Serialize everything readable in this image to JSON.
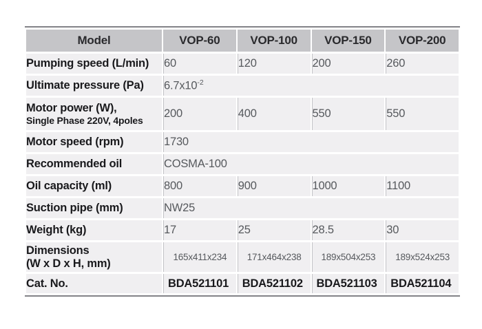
{
  "colors": {
    "page_bg": "#ffffff",
    "header_bg": "#c5c5c8",
    "header_text": "#2a2a2d",
    "row_bg": "#f0eff1",
    "label_text": "#19191c",
    "value_text": "#56595d",
    "divider": "#c2c2c6",
    "border_dark": "#828287"
  },
  "table": {
    "header": {
      "model_label": "Model",
      "columns": [
        "VOP-60",
        "VOP-100",
        "VOP-150",
        "VOP-200"
      ]
    },
    "rows": [
      {
        "label": "Pumping speed (L/min)",
        "values": [
          "60",
          "120",
          "200",
          "260"
        ]
      },
      {
        "label": "Ultimate pressure (Pa)",
        "value_base": "6.7x10",
        "value_sup": "-2"
      },
      {
        "label": "Motor power (W),",
        "sublabel": "Single Phase 220V, 4poles",
        "values": [
          "200",
          "400",
          "550",
          "550"
        ]
      },
      {
        "label": "Motor speed (rpm)",
        "value": "1730"
      },
      {
        "label": "Recommended oil",
        "value": "COSMA-100"
      },
      {
        "label": "Oil capacity (ml)",
        "values": [
          "800",
          "900",
          "1000",
          "1100"
        ]
      },
      {
        "label": "Suction pipe (mm)",
        "value": "NW25"
      },
      {
        "label": "Weight (kg)",
        "values": [
          "17",
          "25",
          "28.5",
          "30"
        ]
      },
      {
        "label": "Dimensions",
        "sublabel": "(W x D x H, mm)",
        "values": [
          "165x411x234",
          "171x464x238",
          "189x504x253",
          "189x524x253"
        ]
      },
      {
        "label": "Cat. No.",
        "values": [
          "BDA521101",
          "BDA521102",
          "BDA521103",
          "BDA521104"
        ]
      }
    ]
  }
}
